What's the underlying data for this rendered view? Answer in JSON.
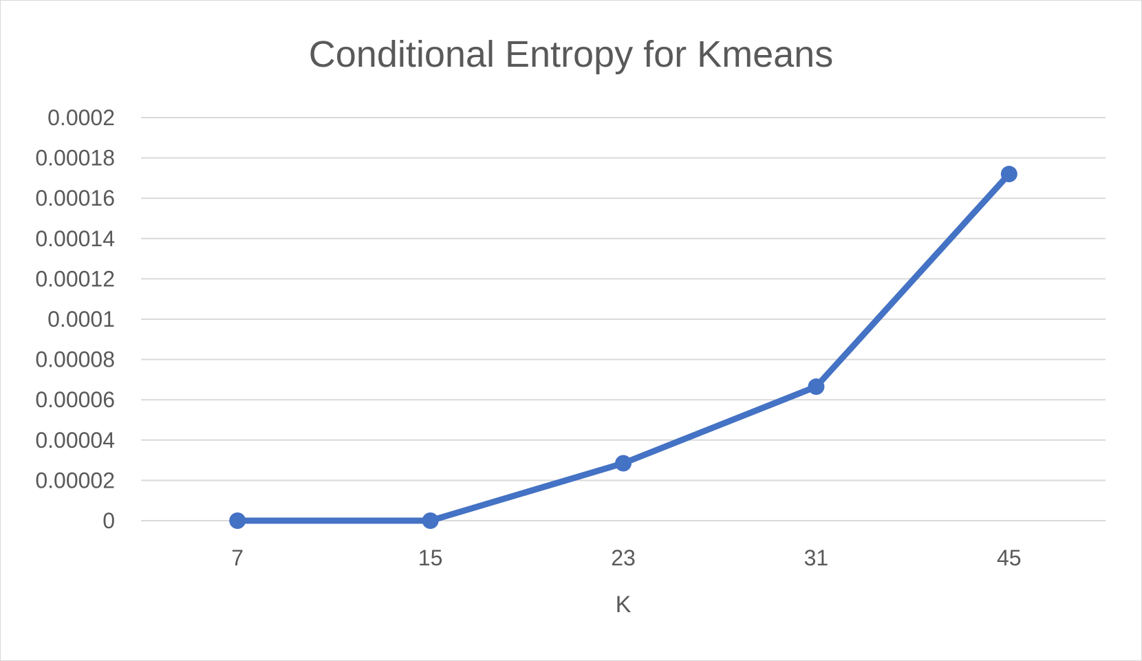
{
  "chart_data": {
    "type": "line",
    "title": "Conditional Entropy for Kmeans",
    "xlabel": "K",
    "ylabel": "",
    "categories": [
      "7",
      "15",
      "23",
      "31",
      "45"
    ],
    "series": [
      {
        "values": [
          0,
          0,
          2.85e-05,
          6.65e-05,
          0.000172
        ]
      }
    ],
    "ylim": [
      0,
      0.0002
    ],
    "y_ticks": [
      {
        "value": 0,
        "label": "0"
      },
      {
        "value": 2e-05,
        "label": "0.00002"
      },
      {
        "value": 4e-05,
        "label": "0.00004"
      },
      {
        "value": 6e-05,
        "label": "0.00006"
      },
      {
        "value": 8e-05,
        "label": "0.00008"
      },
      {
        "value": 0.0001,
        "label": "0.0001"
      },
      {
        "value": 0.00012,
        "label": "0.00012"
      },
      {
        "value": 0.00014,
        "label": "0.00014"
      },
      {
        "value": 0.00016,
        "label": "0.00016"
      },
      {
        "value": 0.00018,
        "label": "0.00018"
      },
      {
        "value": 0.0002,
        "label": "0.0002"
      }
    ],
    "grid": true,
    "legend": "none",
    "colors": {
      "series": "#4472c4",
      "grid": "#d9d9d9",
      "text": "#595959"
    }
  }
}
